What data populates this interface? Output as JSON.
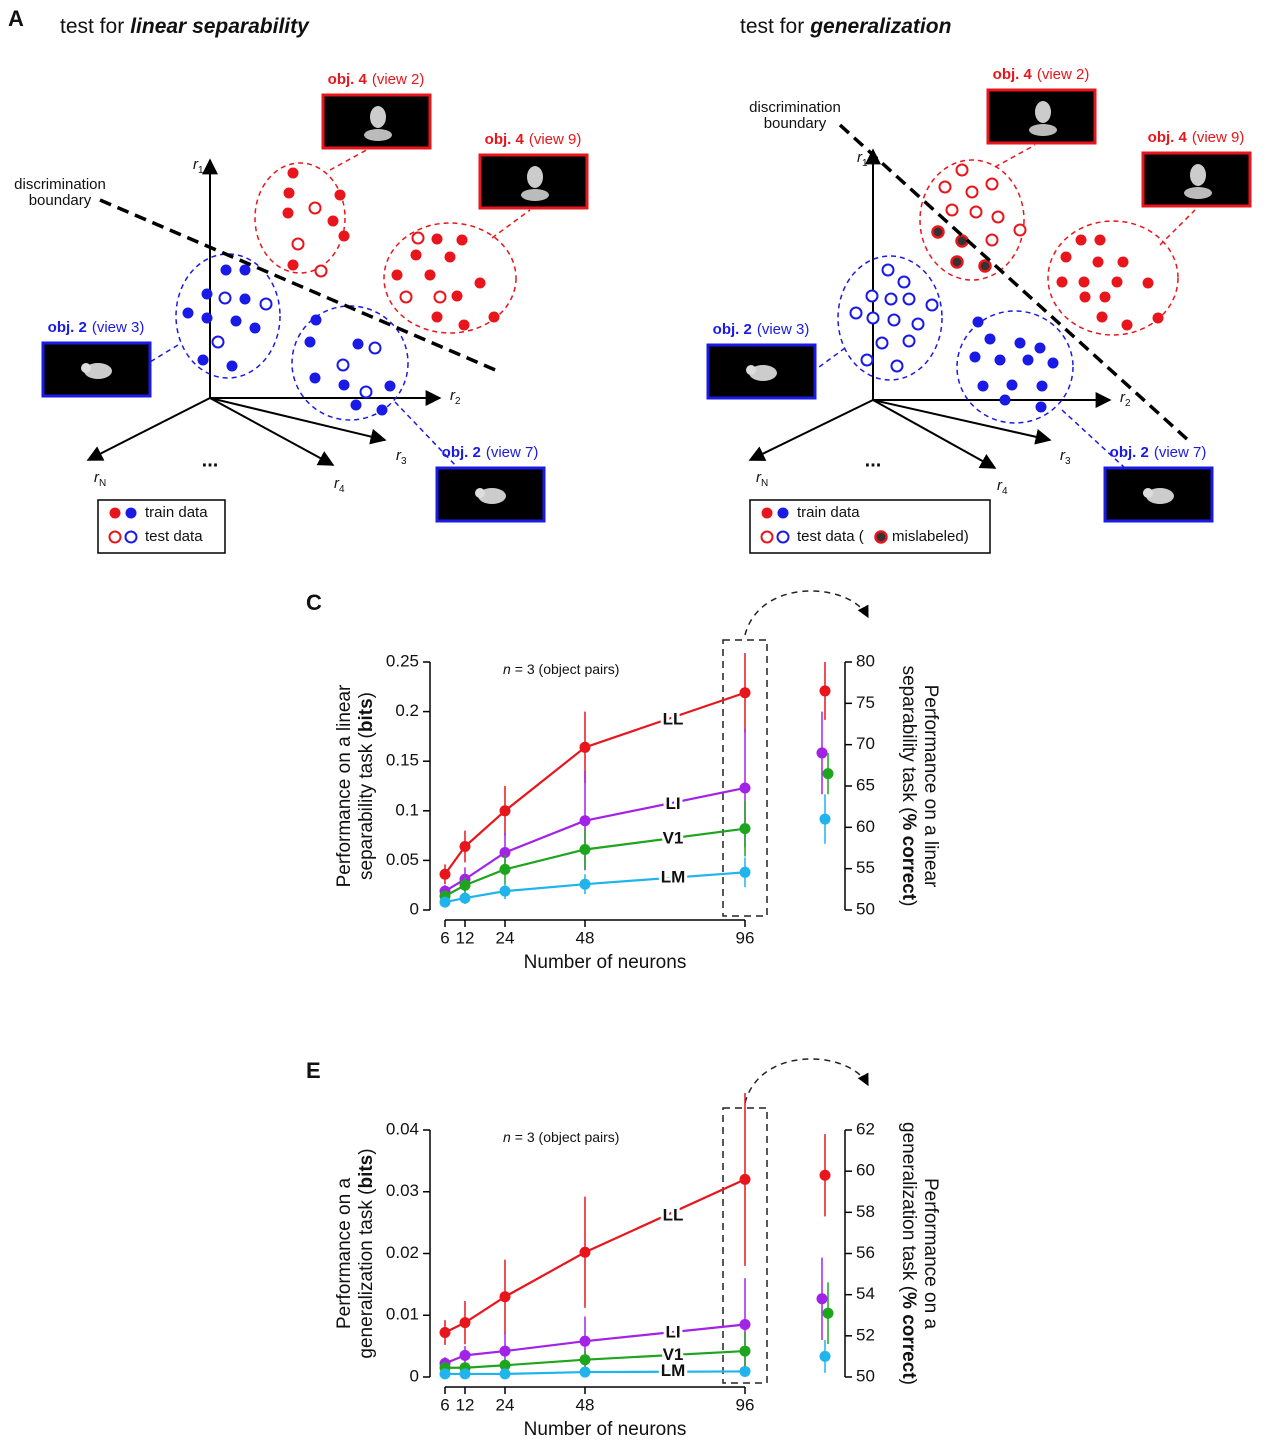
{
  "panel_a": {
    "letter": "A",
    "tests": [
      {
        "prefix": "test for",
        "emphasis": "linear separability"
      },
      {
        "prefix": "test for",
        "emphasis": "generalization"
      }
    ],
    "objects": [
      {
        "name": "obj. 4",
        "view": "(view 2)"
      },
      {
        "name": "obj. 4",
        "view": "(view 9)"
      },
      {
        "name": "obj. 2",
        "view": "(view 3)"
      },
      {
        "name": "obj. 2",
        "view": "(view 7)"
      }
    ],
    "boundary": [
      "discrimination",
      "boundary"
    ],
    "axis_symbol": "r",
    "axis_subscripts": [
      "1",
      "2",
      "3",
      "4",
      "N"
    ],
    "ellipsis": "...",
    "legend": {
      "train": "train data",
      "test": "test data",
      "mislabeled": [
        "test data (",
        "mislabeled)"
      ]
    }
  },
  "chart_data": [
    {
      "type": "line",
      "panel": "C",
      "annotation_n": "n",
      "annotation": "= 3 (object pairs)",
      "xlabel": "Number of neurons",
      "ylabel": [
        "Performance on a linear",
        "separability task (",
        "bits",
        ")"
      ],
      "y2label": [
        "Performance on a linear",
        "separability task (",
        "% correct",
        ")"
      ],
      "x": [
        6,
        12,
        24,
        48,
        96
      ],
      "xlim": [
        4.5,
        99
      ],
      "xticks": [
        6,
        12,
        24,
        48,
        96
      ],
      "ylim": [
        0,
        0.25
      ],
      "yticks": [
        0,
        0.05,
        0.1,
        0.15,
        0.2,
        0.25
      ],
      "y2lim": [
        50,
        80
      ],
      "y2ticks": [
        50,
        55,
        60,
        65,
        70,
        75,
        80
      ],
      "series": [
        {
          "name": "LL",
          "color": "#e8161c",
          "values": [
            0.036,
            0.064,
            0.1,
            0.164,
            0.219
          ],
          "errors": [
            0.01,
            0.016,
            0.025,
            0.036,
            0.04
          ],
          "y2_value": 76.5,
          "y2_error": 3.5
        },
        {
          "name": "LI",
          "color": "#a322e8",
          "values": [
            0.019,
            0.031,
            0.058,
            0.09,
            0.123
          ],
          "errors": [
            0.006,
            0.012,
            0.02,
            0.05,
            0.06
          ],
          "y2_value": 69,
          "y2_error": 5
        },
        {
          "name": "V1",
          "color": "#1ea51e",
          "values": [
            0.014,
            0.025,
            0.041,
            0.061,
            0.082
          ],
          "errors": [
            0.005,
            0.008,
            0.015,
            0.02,
            0.028
          ],
          "y2_value": 66.5,
          "y2_error": 2.5
        },
        {
          "name": "LM",
          "color": "#1fb4ec",
          "values": [
            0.008,
            0.012,
            0.019,
            0.026,
            0.038
          ],
          "errors": [
            0.004,
            0.006,
            0.008,
            0.01,
            0.015
          ],
          "y2_value": 61,
          "y2_error": 3
        }
      ]
    },
    {
      "type": "line",
      "panel": "E",
      "annotation_n": "n",
      "annotation": "= 3 (object pairs)",
      "xlabel": "Number of neurons",
      "ylabel": [
        "Performance on a",
        "generalization task (",
        "bits",
        ")"
      ],
      "y2label": [
        "Performance on a",
        "generalization task (",
        "% correct",
        ")"
      ],
      "x": [
        6,
        12,
        24,
        48,
        96
      ],
      "xlim": [
        4.5,
        99
      ],
      "xticks": [
        6,
        12,
        24,
        48,
        96
      ],
      "ylim": [
        0,
        0.04
      ],
      "yticks": [
        0,
        0.01,
        0.02,
        0.03,
        0.04
      ],
      "y2lim": [
        50,
        62
      ],
      "y2ticks": [
        50,
        52,
        54,
        56,
        58,
        60,
        62
      ],
      "series": [
        {
          "name": "LL",
          "color": "#e8161c",
          "values": [
            0.0072,
            0.0088,
            0.013,
            0.0202,
            0.032
          ],
          "errors": [
            0.002,
            0.0035,
            0.006,
            0.009,
            0.014
          ],
          "y2_value": 59.8,
          "y2_error": 2
        },
        {
          "name": "LI",
          "color": "#a322e8",
          "values": [
            0.0022,
            0.0035,
            0.0042,
            0.0058,
            0.0085
          ],
          "errors": [
            0.001,
            0.0015,
            0.003,
            0.004,
            0.0075
          ],
          "y2_value": 53.8,
          "y2_error": 2
        },
        {
          "name": "V1",
          "color": "#1ea51e",
          "values": [
            0.0015,
            0.0015,
            0.0019,
            0.0028,
            0.0042
          ],
          "errors": [
            0.0008,
            0.0008,
            0.001,
            0.0015,
            0.003
          ],
          "y2_value": 53.1,
          "y2_error": 1.5
        },
        {
          "name": "LM",
          "color": "#1fb4ec",
          "values": [
            0.0005,
            0.0005,
            0.0005,
            0.0008,
            0.0009
          ],
          "errors": [
            0.0003,
            0.0003,
            0.0003,
            0.0004,
            0.0005
          ],
          "y2_value": 51,
          "y2_error": 0.8
        }
      ]
    }
  ]
}
